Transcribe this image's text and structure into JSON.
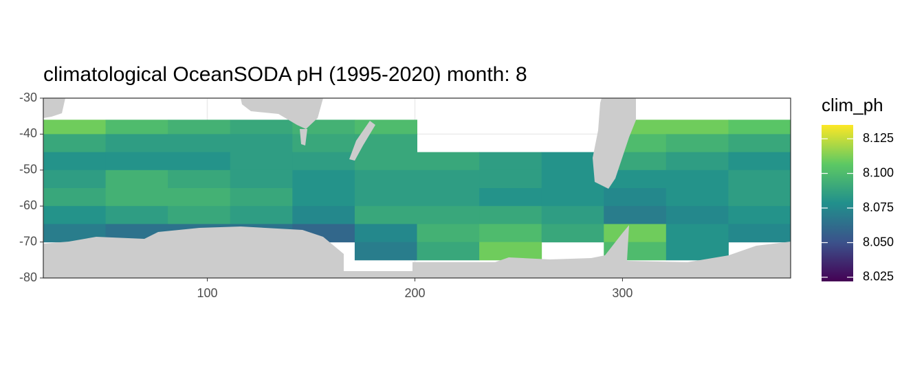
{
  "chart_data": {
    "type": "raster",
    "title": "climatological OceanSODA pH (1995-2020) month: 8",
    "xlim": [
      21,
      381
    ],
    "ylim": [
      -80,
      -30
    ],
    "xticks": [
      100,
      200,
      300
    ],
    "yticks": [
      -30,
      -40,
      -50,
      -60,
      -70,
      -80
    ],
    "grid": true,
    "legend_title": "clim_ph",
    "palette": [
      "#440154",
      "#3b528b",
      "#21908c",
      "#5dc963",
      "#fde725"
    ],
    "color_limits": [
      8.022,
      8.135
    ],
    "legend_ticks": [
      8.025,
      {
        "value": 8.05,
        "label": "8.050"
      },
      8.075,
      {
        "value": 8.1,
        "label": "8.100"
      },
      8.125
    ],
    "lon_bins": [
      21,
      51,
      81,
      111,
      141,
      171,
      201,
      231,
      261,
      291,
      321,
      351,
      381
    ],
    "lat_bins": [
      -36,
      -40,
      -45,
      -50,
      -55,
      -60,
      -65,
      -70,
      -75
    ],
    "z": [
      [
        8.11,
        8.1,
        8.095,
        8.09,
        8.095,
        8.1,
        null,
        null,
        null,
        8.11,
        8.11,
        8.105
      ],
      [
        8.09,
        8.085,
        8.085,
        8.085,
        8.09,
        8.09,
        null,
        null,
        null,
        8.1,
        8.095,
        8.09
      ],
      [
        8.08,
        8.08,
        8.08,
        8.085,
        8.085,
        8.09,
        8.09,
        8.085,
        8.08,
        8.09,
        8.085,
        8.08
      ],
      [
        8.085,
        8.095,
        8.09,
        8.085,
        8.08,
        8.085,
        8.085,
        8.085,
        8.08,
        8.08,
        8.08,
        8.085
      ],
      [
        8.09,
        8.095,
        8.095,
        8.09,
        8.08,
        8.085,
        8.085,
        8.08,
        8.08,
        8.075,
        8.08,
        8.085
      ],
      [
        8.08,
        8.085,
        8.09,
        8.085,
        8.075,
        8.09,
        8.09,
        8.09,
        8.085,
        8.07,
        8.075,
        8.08
      ],
      [
        8.07,
        8.065,
        8.065,
        8.065,
        8.06,
        8.075,
        8.095,
        8.1,
        8.09,
        8.11,
        8.08,
        8.075
      ],
      [
        null,
        null,
        null,
        null,
        null,
        8.07,
        8.09,
        8.11,
        null,
        8.1,
        8.08,
        null
      ]
    ]
  }
}
